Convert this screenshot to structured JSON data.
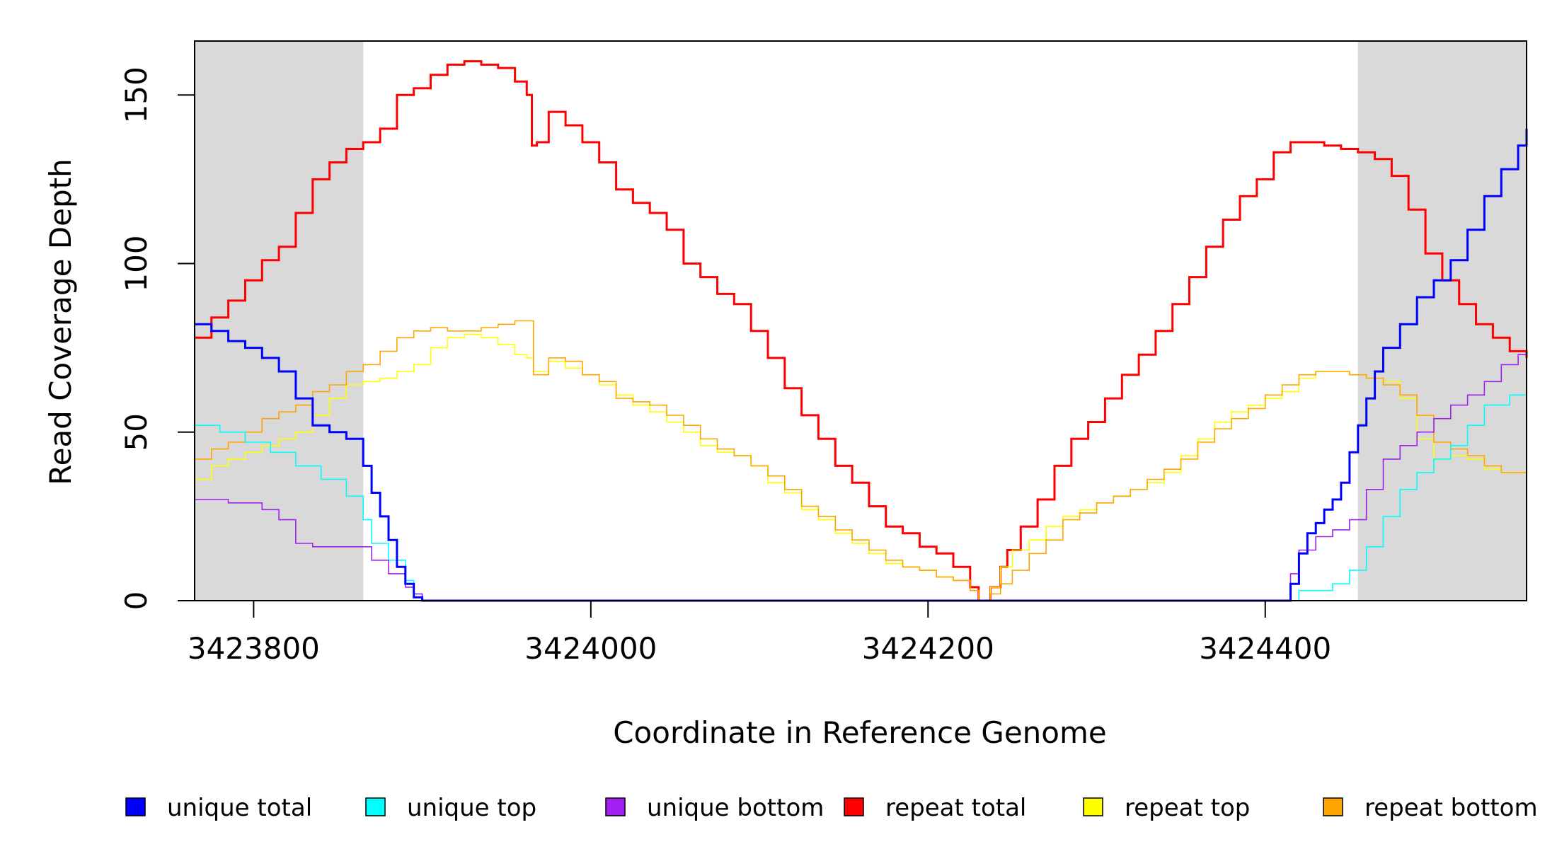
{
  "chart_data": {
    "type": "line",
    "title": "",
    "xlabel": "Coordinate in Reference Genome",
    "ylabel": "Read Coverage Depth",
    "xlim": [
      3423765,
      3424555
    ],
    "ylim": [
      0,
      166
    ],
    "xticks": [
      3423800,
      3424000,
      3424200,
      3424400
    ],
    "yticks": [
      0,
      50,
      100,
      150
    ],
    "shaded_regions": [
      [
        3423765,
        3423865
      ],
      [
        3424455,
        3424555
      ]
    ],
    "legend_position": "bottom",
    "series": [
      {
        "name": "unique total",
        "color": "#0000FF",
        "x": [
          3423765,
          3423775,
          3423785,
          3423795,
          3423805,
          3423815,
          3423825,
          3423835,
          3423845,
          3423855,
          3423865,
          3423870,
          3423875,
          3423880,
          3423885,
          3423890,
          3423895,
          3423900,
          3424410,
          3424415,
          3424420,
          3424425,
          3424430,
          3424435,
          3424440,
          3424445,
          3424450,
          3424455,
          3424460,
          3424465,
          3424470,
          3424480,
          3424490,
          3424500,
          3424510,
          3424520,
          3424530,
          3424540,
          3424550,
          3424555
        ],
        "y": [
          82,
          80,
          77,
          75,
          72,
          68,
          60,
          52,
          50,
          48,
          40,
          32,
          25,
          18,
          10,
          5,
          1,
          0,
          0,
          5,
          14,
          20,
          23,
          27,
          30,
          35,
          44,
          52,
          60,
          68,
          75,
          82,
          90,
          95,
          101,
          110,
          120,
          128,
          135,
          140
        ]
      },
      {
        "name": "unique top",
        "color": "#00FFFF",
        "x": [
          3423765,
          3423780,
          3423795,
          3423810,
          3423825,
          3423840,
          3423855,
          3423865,
          3423870,
          3423880,
          3423890,
          3423895,
          3423900,
          3424410,
          3424420,
          3424440,
          3424450,
          3424460,
          3424470,
          3424480,
          3424490,
          3424500,
          3424510,
          3424520,
          3424530,
          3424545,
          3424555
        ],
        "y": [
          52,
          50,
          47,
          44,
          40,
          36,
          31,
          24,
          17,
          12,
          6,
          2,
          0,
          0,
          3,
          5,
          9,
          16,
          25,
          33,
          38,
          42,
          46,
          52,
          58,
          61,
          62
        ]
      },
      {
        "name": "unique bottom",
        "color": "#A020F0",
        "x": [
          3423765,
          3423785,
          3423805,
          3423815,
          3423825,
          3423835,
          3423845,
          3423855,
          3423865,
          3423870,
          3423880,
          3423890,
          3423895,
          3423900,
          3424410,
          3424415,
          3424420,
          3424430,
          3424440,
          3424450,
          3424460,
          3424470,
          3424480,
          3424490,
          3424500,
          3424510,
          3424520,
          3424530,
          3424540,
          3424550,
          3424555
        ],
        "y": [
          30,
          29,
          27,
          24,
          17,
          16,
          16,
          16,
          16,
          12,
          8,
          4,
          2,
          0,
          0,
          8,
          15,
          19,
          21,
          24,
          33,
          42,
          46,
          50,
          54,
          58,
          61,
          65,
          70,
          73,
          76
        ]
      },
      {
        "name": "repeat total",
        "color": "#FF0000",
        "x": [
          3423765,
          3423775,
          3423785,
          3423795,
          3423805,
          3423815,
          3423825,
          3423835,
          3423845,
          3423855,
          3423865,
          3423875,
          3423885,
          3423895,
          3423905,
          3423915,
          3423925,
          3423935,
          3423945,
          3423955,
          3423962,
          3423965,
          3423968,
          3423975,
          3423985,
          3423995,
          3424005,
          3424015,
          3424025,
          3424035,
          3424045,
          3424055,
          3424065,
          3424075,
          3424085,
          3424095,
          3424105,
          3424115,
          3424125,
          3424135,
          3424145,
          3424155,
          3424165,
          3424175,
          3424185,
          3424195,
          3424205,
          3424215,
          3424225,
          3424230,
          3424233,
          3424237,
          3424243,
          3424247,
          3424255,
          3424265,
          3424275,
          3424285,
          3424295,
          3424305,
          3424315,
          3424325,
          3424335,
          3424345,
          3424355,
          3424365,
          3424375,
          3424385,
          3424395,
          3424405,
          3424415,
          3424425,
          3424435,
          3424445,
          3424455,
          3424465,
          3424475,
          3424485,
          3424495,
          3424505,
          3424515,
          3424525,
          3424535,
          3424545,
          3424555
        ],
        "y": [
          78,
          84,
          89,
          95,
          101,
          105,
          115,
          125,
          130,
          134,
          136,
          140,
          150,
          152,
          156,
          159,
          160,
          159,
          158,
          154,
          150,
          135,
          136,
          145,
          141,
          136,
          130,
          122,
          118,
          115,
          110,
          100,
          96,
          91,
          88,
          80,
          72,
          63,
          55,
          48,
          40,
          35,
          28,
          22,
          20,
          16,
          14,
          10,
          4,
          0,
          0,
          4,
          10,
          15,
          22,
          30,
          40,
          48,
          53,
          60,
          67,
          73,
          80,
          88,
          96,
          105,
          113,
          120,
          125,
          133,
          136,
          136,
          135,
          134,
          133,
          131,
          126,
          116,
          103,
          95,
          88,
          82,
          78,
          74,
          72
        ]
      },
      {
        "name": "repeat top",
        "color": "#FFFF00",
        "x": [
          3423765,
          3423775,
          3423785,
          3423795,
          3423805,
          3423815,
          3423825,
          3423835,
          3423845,
          3423855,
          3423865,
          3423875,
          3423885,
          3423895,
          3423905,
          3423915,
          3423925,
          3423935,
          3423945,
          3423955,
          3423962,
          3423966,
          3423975,
          3423985,
          3423995,
          3424005,
          3424015,
          3424025,
          3424035,
          3424045,
          3424055,
          3424065,
          3424075,
          3424085,
          3424095,
          3424105,
          3424115,
          3424125,
          3424135,
          3424145,
          3424155,
          3424165,
          3424175,
          3424185,
          3424195,
          3424205,
          3424215,
          3424225,
          3424230,
          3424233,
          3424237,
          3424243,
          3424250,
          3424260,
          3424270,
          3424280,
          3424290,
          3424300,
          3424310,
          3424320,
          3424330,
          3424340,
          3424350,
          3424360,
          3424370,
          3424380,
          3424390,
          3424400,
          3424410,
          3424420,
          3424430,
          3424440,
          3424450,
          3424460,
          3424470,
          3424480,
          3424490,
          3424500,
          3424510,
          3424520,
          3424530,
          3424540,
          3424555
        ],
        "y": [
          36,
          40,
          42,
          44,
          46,
          48,
          50,
          55,
          60,
          64,
          65,
          66,
          68,
          70,
          75,
          78,
          79,
          78,
          76,
          73,
          72,
          68,
          71,
          69,
          67,
          64,
          61,
          58,
          56,
          53,
          50,
          46,
          44,
          43,
          40,
          35,
          32,
          27,
          24,
          20,
          17,
          14,
          11,
          10,
          9,
          7,
          6,
          3,
          0,
          0,
          4,
          10,
          15,
          18,
          22,
          25,
          27,
          29,
          31,
          33,
          35,
          38,
          43,
          48,
          53,
          56,
          58,
          60,
          62,
          66,
          68,
          68,
          67,
          66,
          65,
          60,
          48,
          42,
          43,
          42,
          39,
          38,
          36
        ]
      },
      {
        "name": "repeat bottom",
        "color": "#FFA500",
        "x": [
          3423765,
          3423775,
          3423785,
          3423795,
          3423805,
          3423815,
          3423825,
          3423835,
          3423845,
          3423855,
          3423865,
          3423875,
          3423885,
          3423895,
          3423905,
          3423915,
          3423925,
          3423935,
          3423945,
          3423955,
          3423962,
          3423966,
          3423975,
          3423985,
          3423995,
          3424005,
          3424015,
          3424025,
          3424035,
          3424045,
          3424055,
          3424065,
          3424075,
          3424085,
          3424095,
          3424105,
          3424115,
          3424125,
          3424135,
          3424145,
          3424155,
          3424165,
          3424175,
          3424185,
          3424195,
          3424205,
          3424215,
          3424225,
          3424230,
          3424233,
          3424237,
          3424243,
          3424250,
          3424260,
          3424270,
          3424280,
          3424290,
          3424300,
          3424310,
          3424320,
          3424330,
          3424340,
          3424350,
          3424360,
          3424370,
          3424380,
          3424390,
          3424400,
          3424410,
          3424420,
          3424430,
          3424440,
          3424450,
          3424460,
          3424470,
          3424480,
          3424490,
          3424500,
          3424510,
          3424520,
          3424530,
          3424540,
          3424555
        ],
        "y": [
          42,
          45,
          47,
          50,
          54,
          56,
          58,
          62,
          64,
          68,
          70,
          74,
          78,
          80,
          81,
          80,
          80,
          81,
          82,
          83,
          83,
          67,
          72,
          71,
          67,
          65,
          60,
          59,
          58,
          55,
          52,
          48,
          45,
          43,
          40,
          37,
          33,
          28,
          25,
          21,
          18,
          15,
          12,
          10,
          9,
          7,
          6,
          3,
          0,
          0,
          2,
          5,
          9,
          14,
          18,
          24,
          26,
          29,
          31,
          33,
          36,
          39,
          42,
          47,
          51,
          54,
          57,
          61,
          64,
          67,
          68,
          68,
          67,
          66,
          64,
          61,
          55,
          47,
          45,
          43,
          40,
          38,
          37
        ]
      }
    ],
    "legend": [
      {
        "label": "unique total",
        "color": "#0000FF"
      },
      {
        "label": "unique top",
        "color": "#00FFFF"
      },
      {
        "label": "unique bottom",
        "color": "#A020F0"
      },
      {
        "label": "repeat total",
        "color": "#FF0000"
      },
      {
        "label": "repeat top",
        "color": "#FFFF00"
      },
      {
        "label": "repeat bottom",
        "color": "#FFA500"
      }
    ]
  }
}
